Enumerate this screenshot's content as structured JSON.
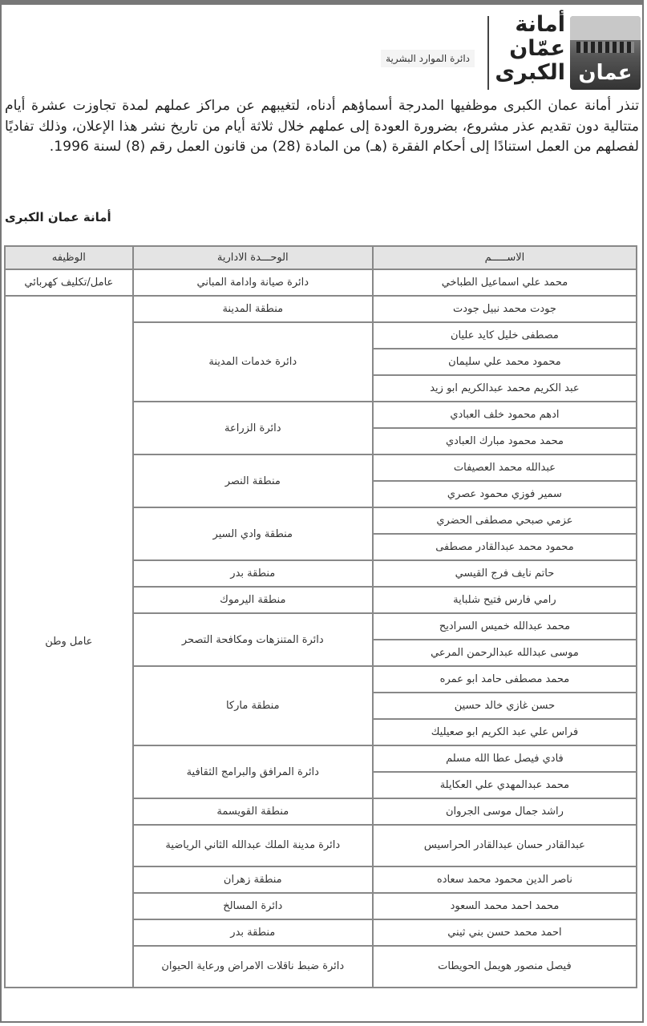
{
  "header": {
    "logo_text": [
      "أمانة",
      "عمّان",
      "الكبرى"
    ],
    "logo_emblem_text": "عمان",
    "department": "دائرة الموارد البشرية"
  },
  "notice": {
    "body": "تنذر أمانة عمان الكبرى موظفيها المدرجة أسماؤهم أدناه، لتغيبهم عن مراكز عملهم لمدة تجاوزت عشرة أيام متتالية دون تقديم عذر مشروع، بضرورة العودة إلى عملهم خلال ثلاثة أيام من تاريخ نشر هذا الإعلان، وذلك تفاديًا لفصلهم من العمل استنادًا إلى أحكام الفقرة (هـ) من المادة (28) من قانون العمل رقم (8) لسنة 1996.",
    "signature": "أمانة عمان الكبرى"
  },
  "table": {
    "headers": {
      "name": "الاســـــم",
      "unit": "الوحـــدة الادارية",
      "job": "الوظيفه"
    },
    "groups": [
      {
        "job": "عامل/تكليف كهربائي",
        "units": [
          {
            "unit": "دائرة صيانة وادامة المباني",
            "names": [
              "محمد علي اسماعيل الطباخي"
            ]
          }
        ]
      },
      {
        "job": "عامل وطن",
        "units": [
          {
            "unit": "منطقة المدينة",
            "names": [
              "جودت محمد نبيل جودت"
            ]
          },
          {
            "unit": "دائرة خدمات المدينة",
            "names": [
              "مصطفى خليل كايد عليان",
              "محمود محمد علي سليمان",
              "عبد الكريم محمد عبدالكريم ابو زيد"
            ]
          },
          {
            "unit": "دائرة الزراعة",
            "names": [
              "ادهم محمود خلف العبادي",
              "محمد محمود مبارك العبادي"
            ]
          },
          {
            "unit": "منطقة النصر",
            "names": [
              "عبدالله محمد العصيفات",
              "سمير فوزي محمود عصري"
            ]
          },
          {
            "unit": "منطقة وادي السير",
            "names": [
              "عزمي صبحي مصطفى الحضري",
              "محمود محمد عبدالقادر مصطفى"
            ]
          },
          {
            "unit": "منطقة بدر",
            "names": [
              "حاتم نايف فرج القيسي"
            ]
          },
          {
            "unit": "منطقة اليرموك",
            "names": [
              "رامي فارس فتيح شلباية"
            ]
          },
          {
            "unit": "دائرة المتنزهات ومكافحة التصحر",
            "names": [
              "محمد عبدالله خميس السراديح",
              "موسى عبدالله عبدالرحمن المرعي"
            ]
          },
          {
            "unit": "منطقة ماركا",
            "names": [
              "محمد مصطفى حامد ابو عمره",
              "حسن غازي خالد حسين",
              "فراس علي عبد الكريم ابو صعيليك"
            ]
          },
          {
            "unit": "دائرة المرافق والبرامج الثقافية",
            "names": [
              "فادي فيصل عطا الله مسلم",
              "محمد عبدالمهدي علي العكايلة"
            ]
          },
          {
            "unit": "منطقة القويسمة",
            "names": [
              "راشد جمال موسى الجروان"
            ]
          },
          {
            "unit": "دائرة مدينة الملك عبدالله الثاني الرياضية",
            "names": [
              "عبدالقادر حسان عبدالقادر الحراسيس"
            ]
          },
          {
            "unit": "منطقة زهران",
            "names": [
              "ناصر الدين محمود محمد سعاده"
            ]
          },
          {
            "unit": "دائرة المسالخ",
            "names": [
              "محمد احمد محمد السعود"
            ]
          },
          {
            "unit": "منطقة بدر",
            "names": [
              "احمد محمد حسن بني ثيني"
            ]
          },
          {
            "unit": "دائرة ضبط ناقلات الامراض ورعاية الحيوان",
            "names": [
              "فيصل منصور هويمل الحويطات"
            ]
          }
        ]
      }
    ]
  }
}
